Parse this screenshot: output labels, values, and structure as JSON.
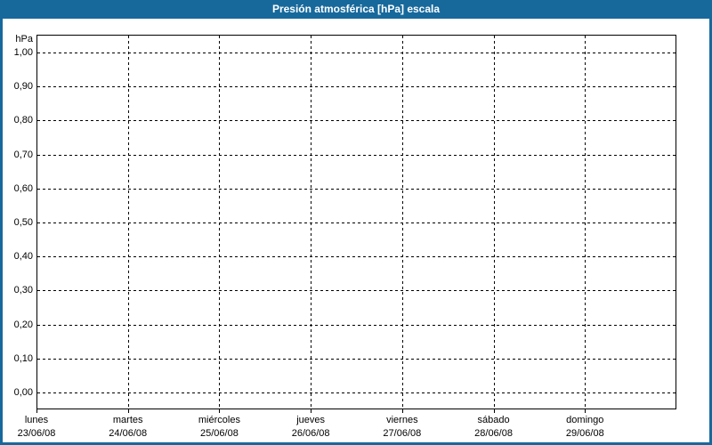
{
  "window": {
    "title": "Presión atmosférica [hPa] escala"
  },
  "colors": {
    "frame_blue": "#17699C",
    "title_text": "#FFFFFF",
    "grid_black": "#000000",
    "background": "#FFFFFF"
  },
  "chart_data": {
    "type": "line",
    "title": "Presión atmosférica [hPa] escala",
    "unit_label": "hPa",
    "ylabel": "hPa",
    "xlabel": "",
    "ylim": [
      0.0,
      1.0
    ],
    "y_tick_step": 0.1,
    "y_tick_labels": [
      "1,00",
      "0,90",
      "0,80",
      "0,70",
      "0,60",
      "0,50",
      "0,40",
      "0,30",
      "0,20",
      "0,10",
      "0,00"
    ],
    "x_tick_labels": [
      {
        "weekday": "lunes",
        "date": "23/06/08"
      },
      {
        "weekday": "martes",
        "date": "24/06/08"
      },
      {
        "weekday": "miércoles",
        "date": "25/06/08"
      },
      {
        "weekday": "jueves",
        "date": "26/06/08"
      },
      {
        "weekday": "viernes",
        "date": "27/06/08"
      },
      {
        "weekday": "sábado",
        "date": "28/06/08"
      },
      {
        "weekday": "domingo",
        "date": "29/06/08"
      }
    ],
    "x_days_span": 7,
    "grid": "dashed",
    "legend": "none",
    "series": []
  }
}
